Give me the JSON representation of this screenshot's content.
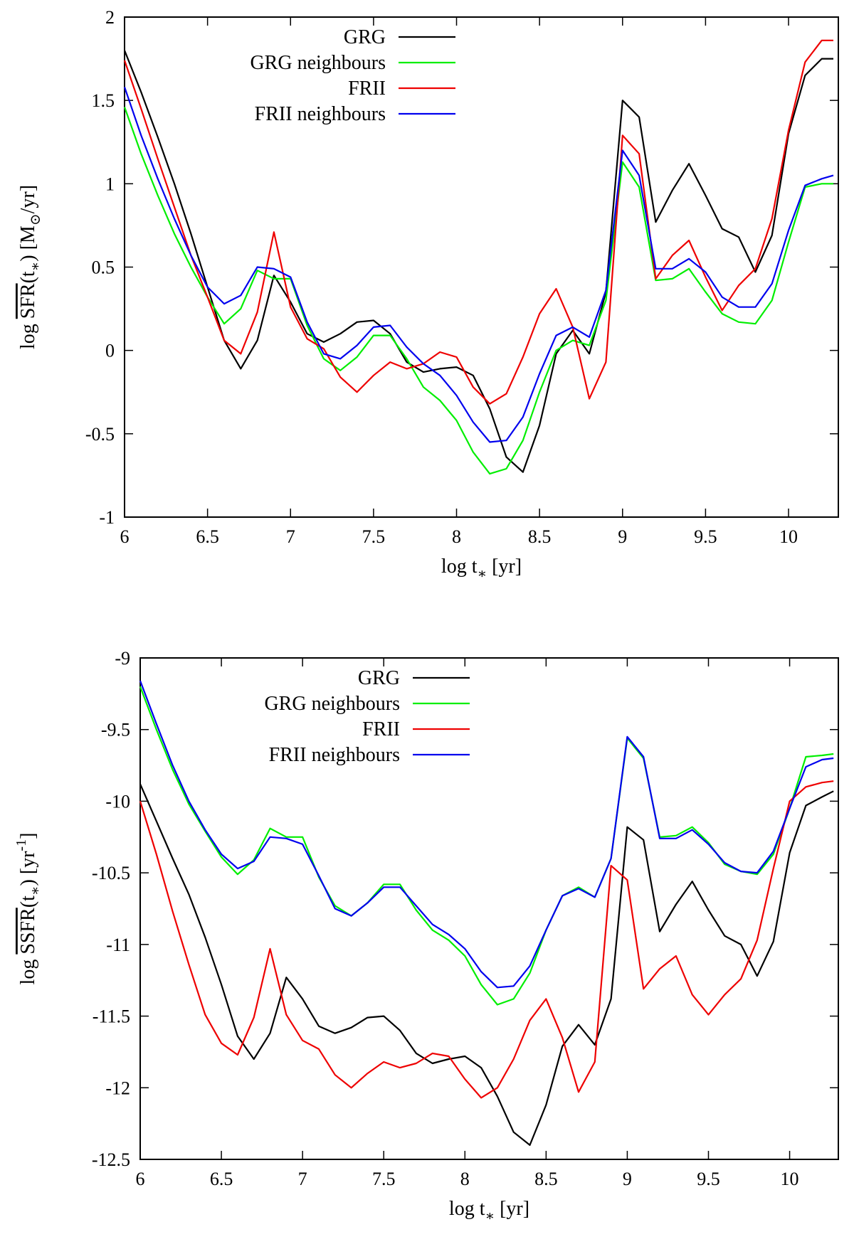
{
  "chart_data": [
    {
      "type": "line",
      "xlabel": "log t* [yr]",
      "ylabel": "log SFR(t*) [M⊙/yr]",
      "xlim": [
        6,
        10.3
      ],
      "ylim": [
        -1,
        2
      ],
      "xticks": [
        "6",
        "6.5",
        "7",
        "7.5",
        "8",
        "8.5",
        "9",
        "9.5",
        "10"
      ],
      "yticks": [
        "-1",
        "-0.5",
        "0",
        "0.5",
        "1",
        "1.5",
        "2"
      ],
      "legend_position": "top-left",
      "x": [
        6.0,
        6.1,
        6.2,
        6.3,
        6.4,
        6.5,
        6.6,
        6.7,
        6.8,
        6.9,
        7.0,
        7.1,
        7.2,
        7.3,
        7.4,
        7.5,
        7.6,
        7.7,
        7.8,
        7.9,
        8.0,
        8.1,
        8.2,
        8.3,
        8.4,
        8.5,
        8.6,
        8.7,
        8.8,
        8.9,
        9.0,
        9.1,
        9.2,
        9.3,
        9.4,
        9.5,
        9.6,
        9.7,
        9.8,
        9.9,
        10.0,
        10.1,
        10.2,
        10.27
      ],
      "series": [
        {
          "name": "GRG",
          "color": "#000000",
          "values": [
            1.8,
            1.55,
            1.28,
            1.0,
            0.7,
            0.38,
            0.06,
            -0.11,
            0.06,
            0.45,
            0.29,
            0.1,
            0.05,
            0.1,
            0.17,
            0.18,
            0.1,
            -0.07,
            -0.13,
            -0.11,
            -0.1,
            -0.15,
            -0.35,
            -0.64,
            -0.73,
            -0.45,
            -0.02,
            0.12,
            -0.02,
            0.35,
            1.5,
            1.4,
            0.77,
            0.96,
            1.12,
            0.93,
            0.73,
            0.68,
            0.47,
            0.69,
            1.3,
            1.65,
            1.75,
            1.75
          ]
        },
        {
          "name": "GRG neighbours",
          "color": "#00ee00",
          "values": [
            1.46,
            1.18,
            0.93,
            0.7,
            0.5,
            0.32,
            0.16,
            0.25,
            0.48,
            0.43,
            0.43,
            0.15,
            -0.05,
            -0.12,
            -0.04,
            0.09,
            0.09,
            -0.05,
            -0.22,
            -0.3,
            -0.42,
            -0.61,
            -0.74,
            -0.71,
            -0.54,
            -0.25,
            0.0,
            0.06,
            0.03,
            0.3,
            1.13,
            0.98,
            0.42,
            0.43,
            0.49,
            0.35,
            0.22,
            0.17,
            0.16,
            0.3,
            0.65,
            0.98,
            1.0,
            1.0
          ]
        },
        {
          "name": "FRII",
          "color": "#ee0000",
          "values": [
            1.74,
            1.45,
            1.15,
            0.86,
            0.57,
            0.32,
            0.06,
            -0.02,
            0.23,
            0.71,
            0.26,
            0.07,
            0.01,
            -0.16,
            -0.25,
            -0.15,
            -0.07,
            -0.11,
            -0.08,
            -0.01,
            -0.04,
            -0.22,
            -0.32,
            -0.26,
            -0.04,
            0.22,
            0.37,
            0.14,
            -0.29,
            -0.07,
            1.29,
            1.18,
            0.43,
            0.57,
            0.66,
            0.44,
            0.24,
            0.39,
            0.49,
            0.79,
            1.32,
            1.73,
            1.86,
            1.86
          ]
        },
        {
          "name": "FRII neighbours",
          "color": "#0000ee",
          "values": [
            1.58,
            1.29,
            1.03,
            0.79,
            0.57,
            0.38,
            0.28,
            0.33,
            0.5,
            0.49,
            0.44,
            0.17,
            -0.02,
            -0.05,
            0.03,
            0.14,
            0.15,
            0.02,
            -0.08,
            -0.15,
            -0.27,
            -0.43,
            -0.55,
            -0.54,
            -0.4,
            -0.14,
            0.09,
            0.14,
            0.08,
            0.36,
            1.2,
            1.05,
            0.49,
            0.49,
            0.55,
            0.47,
            0.32,
            0.26,
            0.26,
            0.4,
            0.72,
            0.99,
            1.03,
            1.05
          ]
        }
      ]
    },
    {
      "type": "line",
      "xlabel": "log t* [yr]",
      "ylabel": "log SSFR(t*) [yr-1]",
      "xlim": [
        6,
        10.3
      ],
      "ylim": [
        -12.5,
        -9
      ],
      "xticks": [
        "6",
        "6.5",
        "7",
        "7.5",
        "8",
        "8.5",
        "9",
        "9.5",
        "10"
      ],
      "yticks": [
        "-12.5",
        "-12",
        "-11.5",
        "-11",
        "-10.5",
        "-10",
        "-9.5",
        "-9"
      ],
      "legend_position": "top-left",
      "x": [
        6.0,
        6.1,
        6.2,
        6.3,
        6.4,
        6.5,
        6.6,
        6.7,
        6.8,
        6.9,
        7.0,
        7.1,
        7.2,
        7.3,
        7.4,
        7.5,
        7.6,
        7.7,
        7.8,
        7.9,
        8.0,
        8.1,
        8.2,
        8.3,
        8.4,
        8.5,
        8.6,
        8.7,
        8.8,
        8.9,
        9.0,
        9.1,
        9.2,
        9.3,
        9.4,
        9.5,
        9.6,
        9.7,
        9.8,
        9.9,
        10.0,
        10.1,
        10.2,
        10.27
      ],
      "series": [
        {
          "name": "GRG",
          "color": "#000000",
          "values": [
            -9.88,
            -10.14,
            -10.4,
            -10.65,
            -10.95,
            -11.28,
            -11.64,
            -11.8,
            -11.62,
            -11.23,
            -11.38,
            -11.57,
            -11.62,
            -11.58,
            -11.51,
            -11.5,
            -11.6,
            -11.76,
            -11.83,
            -11.8,
            -11.78,
            -11.86,
            -12.06,
            -12.31,
            -12.4,
            -12.12,
            -11.71,
            -11.56,
            -11.7,
            -11.38,
            -10.18,
            -10.27,
            -10.91,
            -10.72,
            -10.56,
            -10.76,
            -10.94,
            -11.0,
            -11.22,
            -10.98,
            -10.36,
            -10.03,
            -9.97,
            -9.93
          ]
        },
        {
          "name": "GRG neighbours",
          "color": "#00ee00",
          "values": [
            -9.2,
            -9.5,
            -9.78,
            -10.02,
            -10.21,
            -10.39,
            -10.51,
            -10.41,
            -10.19,
            -10.25,
            -10.25,
            -10.53,
            -10.73,
            -10.8,
            -10.71,
            -10.58,
            -10.58,
            -10.76,
            -10.9,
            -10.97,
            -11.08,
            -11.28,
            -11.42,
            -11.38,
            -11.2,
            -10.9,
            -10.66,
            -10.6,
            -10.67,
            -10.4,
            -9.56,
            -9.7,
            -10.25,
            -10.24,
            -10.18,
            -10.29,
            -10.44,
            -10.49,
            -10.51,
            -10.37,
            -10.05,
            -9.69,
            -9.68,
            -9.67
          ]
        },
        {
          "name": "FRII",
          "color": "#ee0000",
          "values": [
            -10.0,
            -10.37,
            -10.77,
            -11.14,
            -11.49,
            -11.69,
            -11.77,
            -11.51,
            -11.03,
            -11.49,
            -11.67,
            -11.73,
            -11.91,
            -12.0,
            -11.9,
            -11.82,
            -11.86,
            -11.83,
            -11.76,
            -11.78,
            -11.94,
            -12.07,
            -12.0,
            -11.8,
            -11.53,
            -11.38,
            -11.65,
            -12.03,
            -11.82,
            -10.45,
            -10.55,
            -11.31,
            -11.17,
            -11.08,
            -11.35,
            -11.49,
            -11.35,
            -11.24,
            -10.97,
            -10.47,
            -10.0,
            -9.9,
            -9.87,
            -9.86
          ]
        },
        {
          "name": "FRII neighbours",
          "color": "#0000ee",
          "values": [
            -9.16,
            -9.46,
            -9.75,
            -10.0,
            -10.2,
            -10.37,
            -10.47,
            -10.42,
            -10.25,
            -10.26,
            -10.3,
            -10.52,
            -10.75,
            -10.8,
            -10.71,
            -10.6,
            -10.6,
            -10.73,
            -10.86,
            -10.93,
            -11.03,
            -11.19,
            -11.3,
            -11.29,
            -11.15,
            -10.9,
            -10.66,
            -10.61,
            -10.67,
            -10.4,
            -9.55,
            -9.69,
            -10.26,
            -10.26,
            -10.2,
            -10.3,
            -10.43,
            -10.49,
            -10.5,
            -10.35,
            -10.05,
            -9.76,
            -9.71,
            -9.7
          ]
        }
      ]
    }
  ]
}
